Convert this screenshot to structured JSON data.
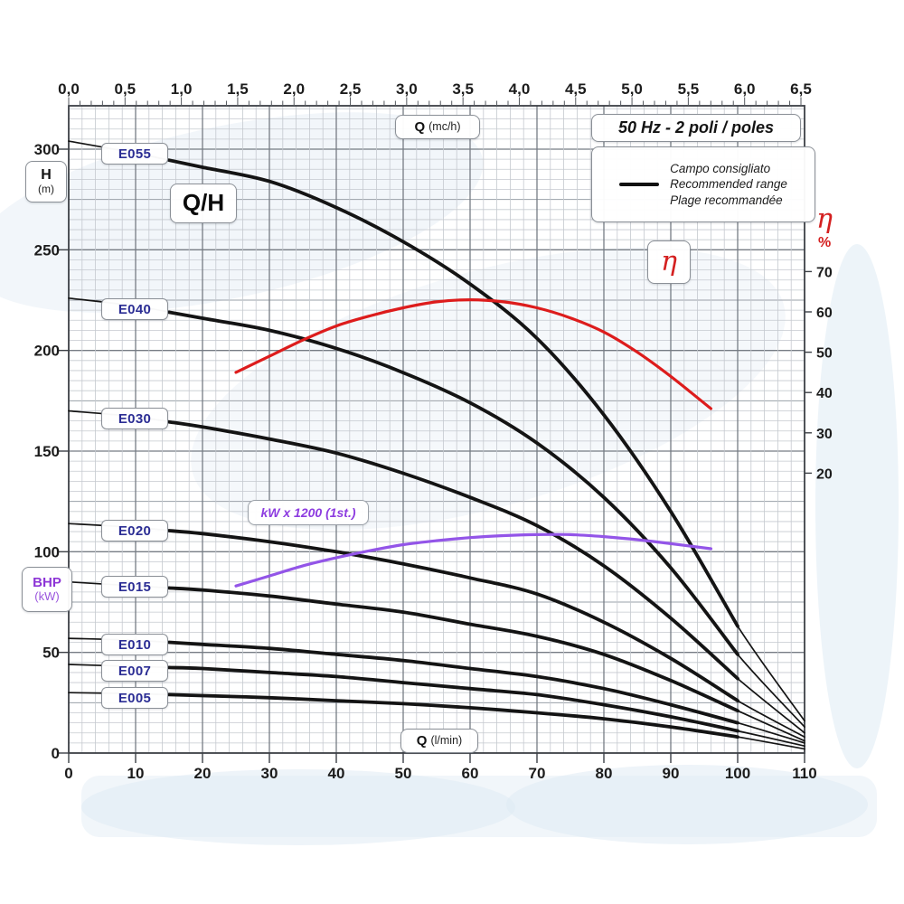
{
  "title_box": "50 Hz - 2 poli / poles",
  "legend": {
    "lines": [
      "Campo consigliato",
      "Recommended range",
      "Plage recommandée"
    ]
  },
  "labels": {
    "qh": "Q/H",
    "h_axis": {
      "main": "H",
      "sub": "(m)"
    },
    "bhp": {
      "main": "BHP",
      "sub": "(kW)"
    },
    "q_top": {
      "main": "Q",
      "sub": "(mc/h)"
    },
    "q_bottom": {
      "main": "Q",
      "sub": "(l/min)"
    },
    "eta_box": "η",
    "eta_axis": {
      "main": "η",
      "sub": "%"
    },
    "kw_label": "kW x 1200 (1st.)"
  },
  "chart_data": {
    "type": "line",
    "title": "50 Hz - 2 poli / poles",
    "grid": "on",
    "x_bottom": {
      "label": "Q (l/min)",
      "range": [
        0,
        110
      ],
      "ticks": [
        0,
        10,
        20,
        30,
        40,
        50,
        60,
        70,
        80,
        90,
        100,
        110
      ]
    },
    "x_top": {
      "label": "Q (mc/h)",
      "range": [
        0,
        6.5
      ],
      "ticks": [
        "0,0",
        "0,5",
        "1,0",
        "1,5",
        "2,0",
        "2,5",
        "3,0",
        "3,5",
        "4,0",
        "4,5",
        "5,0",
        "5,5",
        "6,0",
        "6,5"
      ]
    },
    "y_left": {
      "label": "H (m)",
      "range": [
        0,
        300
      ],
      "ticks": [
        0,
        50,
        100,
        150,
        200,
        250,
        300
      ]
    },
    "y_right": {
      "label": "η %",
      "ticks": [
        70,
        60,
        50,
        40,
        30,
        20
      ]
    },
    "recommended_range_lmin": [
      15,
      100
    ],
    "colors": {
      "curve": "#141414",
      "efficiency": "#dd1c1c",
      "power": "#9355e8",
      "label_text": "#2b2d94"
    },
    "series": [
      {
        "label": "E055",
        "points": [
          [
            0,
            304
          ],
          [
            10,
            298
          ],
          [
            20,
            291
          ],
          [
            30,
            284
          ],
          [
            40,
            271
          ],
          [
            50,
            254
          ],
          [
            60,
            233
          ],
          [
            70,
            206
          ],
          [
            80,
            168
          ],
          [
            90,
            120
          ],
          [
            100,
            63
          ],
          [
            110,
            16
          ]
        ]
      },
      {
        "label": "E040",
        "points": [
          [
            0,
            226
          ],
          [
            10,
            222
          ],
          [
            20,
            216
          ],
          [
            30,
            210
          ],
          [
            40,
            201
          ],
          [
            50,
            189
          ],
          [
            60,
            174
          ],
          [
            70,
            154
          ],
          [
            80,
            127
          ],
          [
            90,
            92
          ],
          [
            100,
            49
          ],
          [
            110,
            13
          ]
        ]
      },
      {
        "label": "E030",
        "points": [
          [
            0,
            170
          ],
          [
            10,
            167
          ],
          [
            20,
            162
          ],
          [
            30,
            156
          ],
          [
            40,
            149
          ],
          [
            50,
            139
          ],
          [
            60,
            127
          ],
          [
            70,
            113
          ],
          [
            80,
            93
          ],
          [
            90,
            67
          ],
          [
            100,
            37
          ],
          [
            110,
            10
          ]
        ]
      },
      {
        "label": "E020",
        "points": [
          [
            0,
            114
          ],
          [
            10,
            112
          ],
          [
            20,
            109
          ],
          [
            30,
            105
          ],
          [
            40,
            100
          ],
          [
            50,
            94
          ],
          [
            60,
            87
          ],
          [
            70,
            79
          ],
          [
            80,
            65
          ],
          [
            90,
            47
          ],
          [
            100,
            26
          ],
          [
            110,
            8
          ]
        ]
      },
      {
        "label": "E015",
        "points": [
          [
            0,
            85
          ],
          [
            10,
            83
          ],
          [
            20,
            81
          ],
          [
            30,
            78
          ],
          [
            40,
            74
          ],
          [
            50,
            70
          ],
          [
            60,
            64
          ],
          [
            70,
            58
          ],
          [
            80,
            49
          ],
          [
            90,
            36
          ],
          [
            100,
            21
          ],
          [
            110,
            6
          ]
        ]
      },
      {
        "label": "E010",
        "points": [
          [
            0,
            57
          ],
          [
            10,
            56
          ],
          [
            20,
            54
          ],
          [
            30,
            52
          ],
          [
            40,
            49
          ],
          [
            50,
            46
          ],
          [
            60,
            42
          ],
          [
            70,
            38
          ],
          [
            80,
            32
          ],
          [
            90,
            24
          ],
          [
            100,
            15
          ],
          [
            110,
            5
          ]
        ]
      },
      {
        "label": "E007",
        "points": [
          [
            0,
            44
          ],
          [
            10,
            43
          ],
          [
            20,
            42
          ],
          [
            30,
            40
          ],
          [
            40,
            38
          ],
          [
            50,
            35
          ],
          [
            60,
            32
          ],
          [
            70,
            29
          ],
          [
            80,
            24
          ],
          [
            90,
            18
          ],
          [
            100,
            11
          ],
          [
            110,
            3.5
          ]
        ]
      },
      {
        "label": "E005",
        "points": [
          [
            0,
            30
          ],
          [
            10,
            29.5
          ],
          [
            20,
            28.5
          ],
          [
            30,
            27.5
          ],
          [
            40,
            26
          ],
          [
            50,
            24.5
          ],
          [
            60,
            22.5
          ],
          [
            70,
            20
          ],
          [
            80,
            17
          ],
          [
            90,
            13
          ],
          [
            100,
            8
          ],
          [
            110,
            2
          ]
        ]
      }
    ],
    "efficiency_curve": {
      "label": "η",
      "unit": "%",
      "points": [
        [
          25,
          45
        ],
        [
          30,
          49
        ],
        [
          35,
          53
        ],
        [
          40,
          56.5
        ],
        [
          45,
          59
        ],
        [
          50,
          61
        ],
        [
          55,
          62.5
        ],
        [
          60,
          63
        ],
        [
          65,
          62.5
        ],
        [
          70,
          61
        ],
        [
          75,
          58.5
        ],
        [
          80,
          55
        ],
        [
          85,
          50
        ],
        [
          90,
          44
        ],
        [
          96,
          36
        ]
      ]
    },
    "power_curve": {
      "label": "kW x 1200 (1st.)",
      "unit": "kW x 1200 read on H scale",
      "points": [
        [
          25,
          83
        ],
        [
          30,
          88
        ],
        [
          35,
          93
        ],
        [
          40,
          97
        ],
        [
          45,
          100.5
        ],
        [
          50,
          103.5
        ],
        [
          55,
          105.5
        ],
        [
          60,
          107
        ],
        [
          65,
          108
        ],
        [
          70,
          108.5
        ],
        [
          75,
          108.5
        ],
        [
          80,
          107.5
        ],
        [
          85,
          106
        ],
        [
          90,
          104
        ],
        [
          96,
          101.5
        ]
      ]
    }
  }
}
